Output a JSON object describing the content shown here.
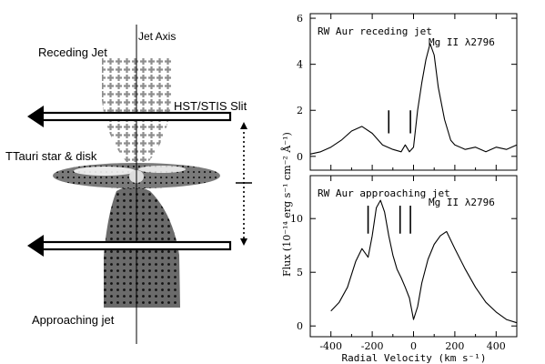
{
  "diagram": {
    "jet_axis_label": "Jet Axis",
    "receding_label": "Receding Jet",
    "slit_label": "HST/STIS Slit",
    "star_label": "TTauri star & disk",
    "approaching_label": "Approaching jet"
  },
  "chart_data": [
    {
      "type": "line",
      "title": "RW Aur receding jet",
      "line_label": "Mg II λ2796",
      "xlim": [
        -500,
        500
      ],
      "ylim": [
        -0.6,
        6.2
      ],
      "yticks": [
        0,
        2,
        4,
        6
      ],
      "xticks": [
        -400,
        -200,
        0,
        200,
        400
      ],
      "marks_at_x": [
        -120,
        -15
      ],
      "series": [
        {
          "x": [
            -500,
            -450,
            -400,
            -350,
            -300,
            -250,
            -200,
            -150,
            -100,
            -60,
            -40,
            -20,
            0,
            20,
            40,
            60,
            80,
            100,
            120,
            150,
            180,
            200,
            250,
            300,
            350,
            400,
            450,
            500
          ],
          "y": [
            0.1,
            0.2,
            0.4,
            0.7,
            1.1,
            1.3,
            1.0,
            0.5,
            0.3,
            0.2,
            0.5,
            0.2,
            0.4,
            2.0,
            3.2,
            4.2,
            4.9,
            4.4,
            3.0,
            1.6,
            0.7,
            0.5,
            0.3,
            0.4,
            0.2,
            0.4,
            0.3,
            0.5
          ]
        }
      ]
    },
    {
      "type": "line",
      "title": "RW Aur approaching jet",
      "line_label": "Mg II λ2796",
      "xlabel": "Radial Velocity (km s⁻¹)",
      "ylabel": "Flux (10⁻¹⁴ erg s⁻¹ cm⁻² Å⁻¹)",
      "xlim": [
        -500,
        500
      ],
      "ylim": [
        -1.0,
        14.0
      ],
      "yticks": [
        0,
        5,
        10
      ],
      "xticks": [
        -400,
        -200,
        0,
        200,
        400
      ],
      "xtick_labels": [
        "-400",
        "-200",
        "0",
        "200",
        "400"
      ],
      "marks_at_x": [
        -220,
        -65,
        -15
      ],
      "series": [
        {
          "x": [
            -400,
            -360,
            -320,
            -280,
            -250,
            -220,
            -200,
            -180,
            -160,
            -140,
            -120,
            -100,
            -80,
            -60,
            -40,
            -20,
            0,
            20,
            40,
            70,
            100,
            130,
            160,
            200,
            250,
            300,
            350,
            400,
            450,
            500
          ],
          "y": [
            1.4,
            2.2,
            3.6,
            6.0,
            7.2,
            6.4,
            8.4,
            11.0,
            11.7,
            10.6,
            8.4,
            6.6,
            5.3,
            4.5,
            3.6,
            2.6,
            0.6,
            1.8,
            4.0,
            6.2,
            7.6,
            8.4,
            8.8,
            7.2,
            5.3,
            3.6,
            2.2,
            1.3,
            0.6,
            0.3
          ]
        }
      ]
    }
  ]
}
